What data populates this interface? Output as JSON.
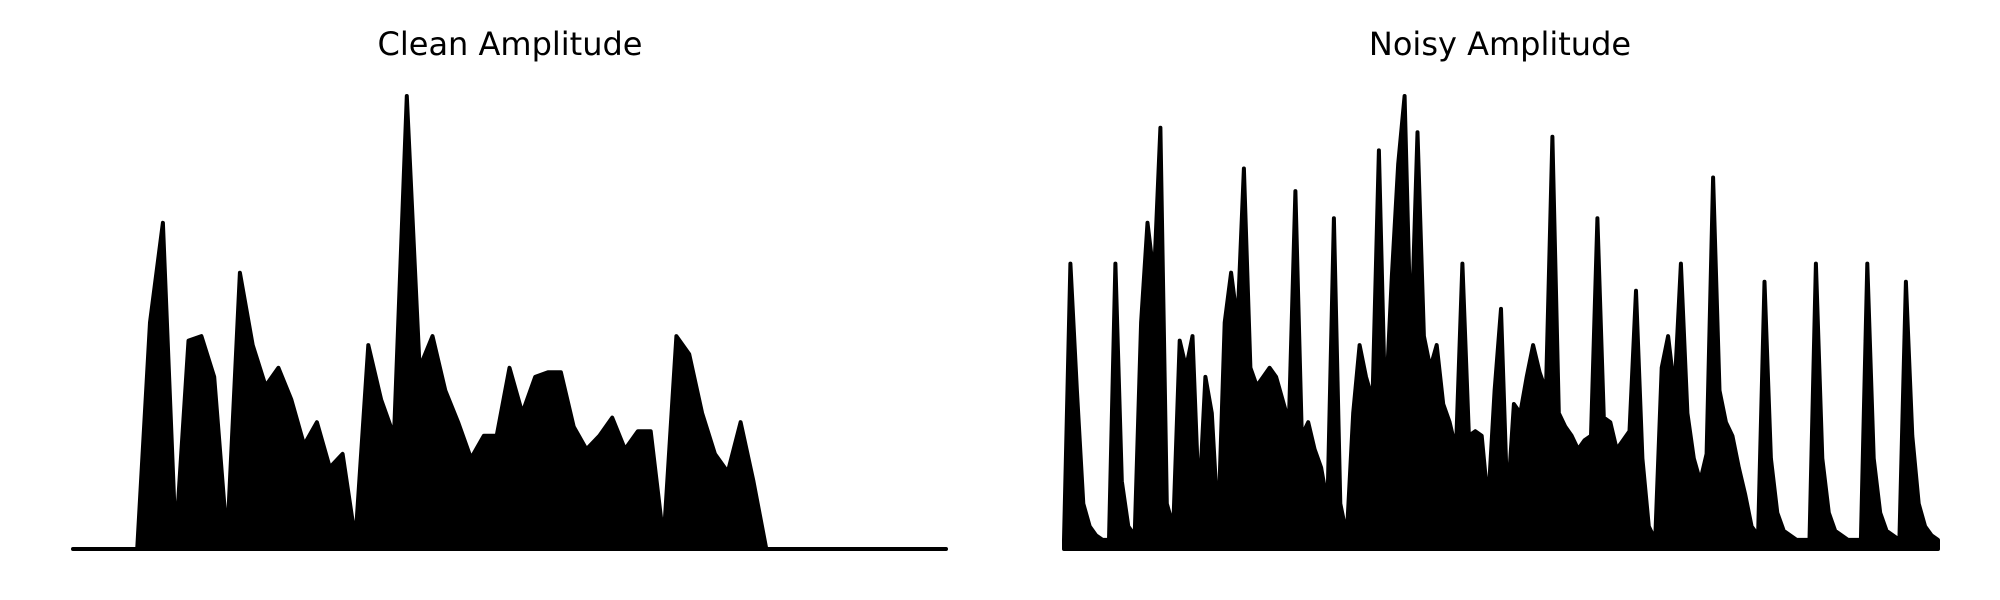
{
  "chart_data": [
    {
      "type": "area",
      "title": "Clean Amplitude",
      "color": "#000000",
      "ylim": [
        0,
        1
      ],
      "values": [
        0,
        0,
        0,
        0,
        0,
        0,
        0.5,
        0.72,
        0.02,
        0.46,
        0.47,
        0.38,
        0.02,
        0.61,
        0.45,
        0.36,
        0.4,
        0.33,
        0.23,
        0.28,
        0.18,
        0.21,
        0.02,
        0.45,
        0.33,
        0.25,
        1.0,
        0.4,
        0.47,
        0.35,
        0.28,
        0.2,
        0.25,
        0.25,
        0.4,
        0.3,
        0.38,
        0.39,
        0.39,
        0.27,
        0.22,
        0.25,
        0.29,
        0.22,
        0.26,
        0.26,
        0.02,
        0.47,
        0.43,
        0.3,
        0.21,
        0.17,
        0.28,
        0.15,
        0,
        0,
        0,
        0,
        0,
        0,
        0,
        0,
        0,
        0,
        0,
        0,
        0,
        0,
        0
      ]
    },
    {
      "type": "area",
      "title": "Noisy Amplitude",
      "color": "#000000",
      "ylim": [
        0,
        1
      ],
      "values": [
        0.02,
        0.63,
        0.35,
        0.1,
        0.05,
        0.03,
        0.02,
        0.02,
        0.63,
        0.15,
        0.05,
        0.03,
        0.5,
        0.72,
        0.6,
        0.93,
        0.1,
        0.05,
        0.46,
        0.4,
        0.47,
        0.1,
        0.38,
        0.3,
        0.05,
        0.5,
        0.61,
        0.5,
        0.84,
        0.4,
        0.36,
        0.38,
        0.4,
        0.38,
        0.33,
        0.28,
        0.79,
        0.25,
        0.28,
        0.22,
        0.18,
        0.1,
        0.73,
        0.1,
        0.03,
        0.3,
        0.45,
        0.38,
        0.33,
        0.88,
        0.3,
        0.6,
        0.85,
        1.0,
        0.45,
        0.92,
        0.47,
        0.4,
        0.45,
        0.32,
        0.28,
        0.22,
        0.63,
        0.25,
        0.26,
        0.25,
        0.1,
        0.35,
        0.53,
        0.1,
        0.32,
        0.3,
        0.38,
        0.45,
        0.39,
        0.35,
        0.91,
        0.3,
        0.27,
        0.25,
        0.22,
        0.24,
        0.25,
        0.73,
        0.29,
        0.28,
        0.22,
        0.24,
        0.26,
        0.57,
        0.2,
        0.05,
        0.02,
        0.4,
        0.47,
        0.35,
        0.63,
        0.3,
        0.2,
        0.15,
        0.21,
        0.82,
        0.35,
        0.28,
        0.25,
        0.18,
        0.12,
        0.05,
        0.03,
        0.59,
        0.2,
        0.08,
        0.04,
        0.03,
        0.02,
        0.02,
        0.02,
        0.63,
        0.2,
        0.08,
        0.04,
        0.03,
        0.02,
        0.02,
        0.02,
        0.63,
        0.2,
        0.08,
        0.04,
        0.03,
        0.02,
        0.59,
        0.25,
        0.1,
        0.05,
        0.03,
        0.02
      ]
    }
  ]
}
